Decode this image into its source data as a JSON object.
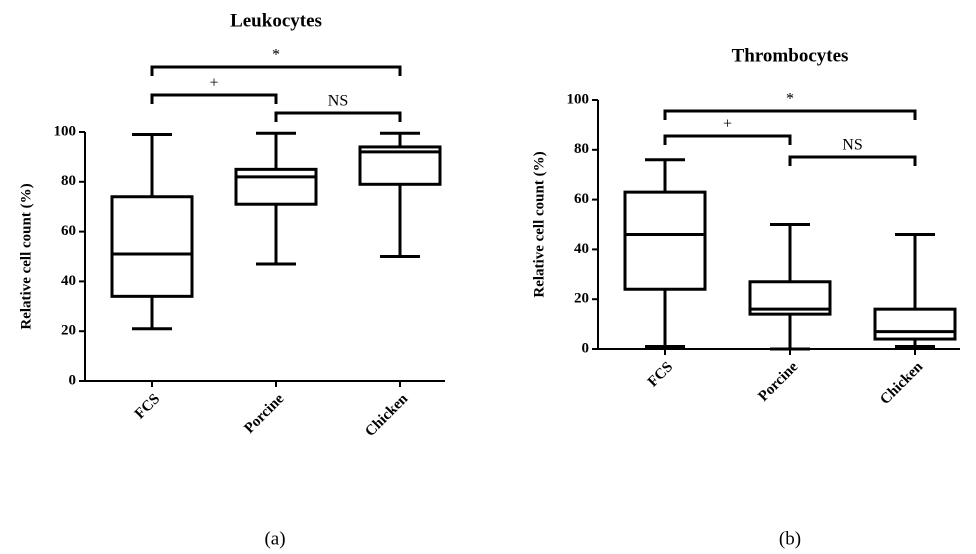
{
  "chart_data": [
    {
      "type": "box",
      "title": "Leukocytes",
      "y_label": "Relative cell count (%)",
      "caption": "(a)",
      "categories": [
        "FCS",
        "Porcine",
        "Chicken"
      ],
      "boxes": [
        {
          "min": 21,
          "q1": 34,
          "median": 51,
          "q3": 74,
          "max": 99
        },
        {
          "min": 47,
          "q1": 71,
          "median": 82,
          "q3": 85,
          "max": 99.5
        },
        {
          "min": 50,
          "q1": 79,
          "median": 92,
          "q3": 94,
          "max": 99.5
        }
      ],
      "color": "#000000",
      "ylim": [
        0,
        100
      ],
      "yticks": [
        0,
        20,
        40,
        60,
        80,
        100
      ],
      "comparisons": [
        {
          "from": "FCS",
          "to": "Chicken",
          "label": "*"
        },
        {
          "from": "FCS",
          "to": "Porcine",
          "label": "+"
        },
        {
          "from": "Porcine",
          "to": "Chicken",
          "label": "NS"
        }
      ]
    },
    {
      "type": "box",
      "title": "Thrombocytes",
      "y_label": "Relative cell count (%)",
      "caption": "(b)",
      "categories": [
        "FCS",
        "Porcine",
        "Chicken"
      ],
      "boxes": [
        {
          "min": 1,
          "q1": 24,
          "median": 46,
          "q3": 63,
          "max": 76
        },
        {
          "min": 0,
          "q1": 14,
          "median": 16,
          "q3": 27,
          "max": 50
        },
        {
          "min": 1,
          "q1": 4,
          "median": 7,
          "q3": 16,
          "max": 46
        }
      ],
      "color": "#000000",
      "ylim": [
        0,
        100
      ],
      "yticks": [
        0,
        20,
        40,
        60,
        80,
        100
      ],
      "comparisons": [
        {
          "from": "FCS",
          "to": "Chicken",
          "label": "*"
        },
        {
          "from": "FCS",
          "to": "Porcine",
          "label": "+"
        },
        {
          "from": "Porcine",
          "to": "Chicken",
          "label": "NS"
        }
      ]
    }
  ]
}
